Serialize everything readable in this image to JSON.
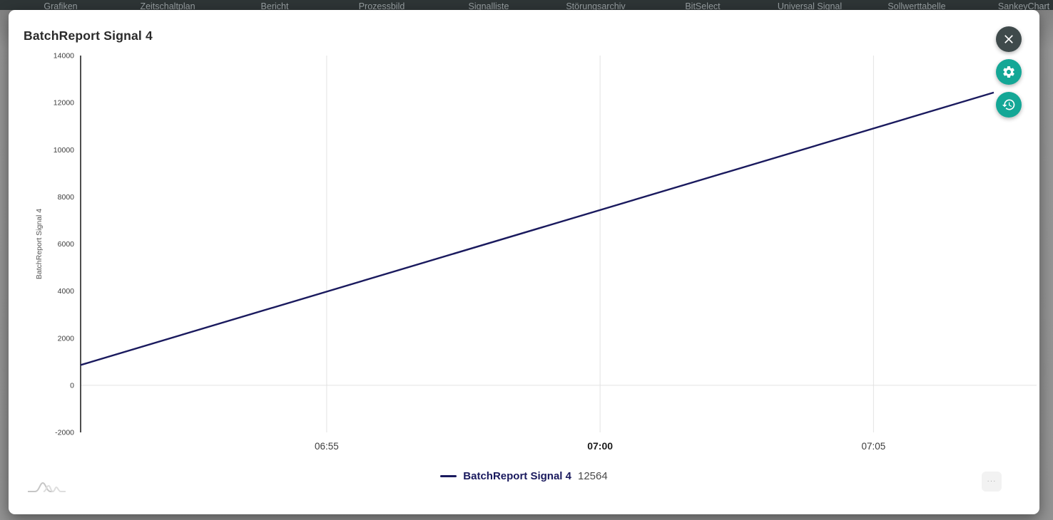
{
  "nav": {
    "items": [
      "Grafiken",
      "Zeitschaltplan",
      "Bericht",
      "Prozessbild",
      "Signalliste",
      "Störungsarchiv",
      "BitSelect",
      "Universal Signal",
      "Sollwerttabelle",
      "SankeyChart"
    ]
  },
  "dialog": {
    "title": "BatchReport Signal 4"
  },
  "colors": {
    "accent_teal": "#14a796",
    "close_button_bg": "#3f4a4b",
    "series_line": "#1a1a5e"
  },
  "legend": {
    "label": "BatchReport Signal 4",
    "value": "12564"
  },
  "footer": {
    "more_label": "···"
  },
  "chart_data": {
    "type": "line",
    "title": "BatchReport Signal 4",
    "xlabel": "",
    "ylabel": "BatchReport Signal 4",
    "ylim": [
      -2000,
      14000
    ],
    "y_ticks": [
      14000,
      12000,
      10000,
      8000,
      6000,
      4000,
      2000,
      0,
      -2000
    ],
    "x_ticks": [
      {
        "label": "06:55",
        "minutes": 415,
        "bold": false
      },
      {
        "label": "07:00",
        "minutes": 420,
        "bold": true
      },
      {
        "label": "07:05",
        "minutes": 425,
        "bold": false
      }
    ],
    "x_domain_minutes": [
      410.5,
      427.2
    ],
    "grid": true,
    "legend_position": "bottom",
    "series": [
      {
        "name": "BatchReport Signal 4",
        "color": "#1a1a5e",
        "current_value": "12564",
        "points": [
          {
            "time": "06:50:30",
            "minutes": 410.5,
            "value": 860
          },
          {
            "time": "07:07:10",
            "minutes": 427.2,
            "value": 12430
          }
        ]
      }
    ]
  }
}
